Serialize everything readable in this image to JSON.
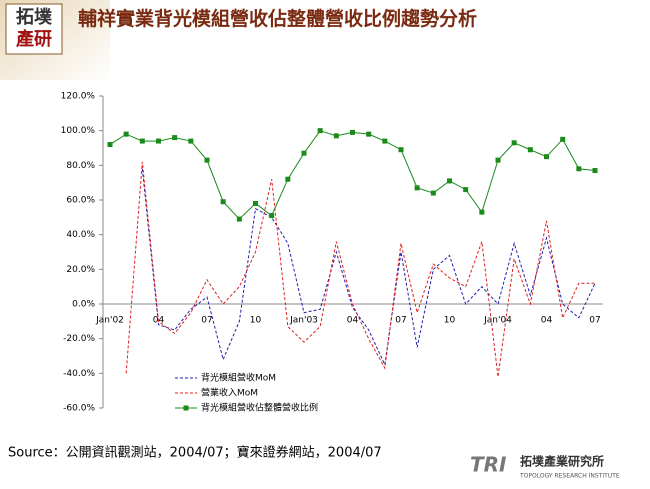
{
  "branding": {
    "logo_top": "拓墣",
    "logo_bottom": "產研",
    "footer_mark": "TRI",
    "footer_name": "拓墣產業研究所",
    "footer_sub": "TOPOLOGY RESEARCH INSTITUTE"
  },
  "chart_data": {
    "type": "line",
    "title": "輔祥實業背光模組營收佔整體營收比例趨勢分析",
    "source": "Source：公開資訊觀測站，2004/07；寶來證券網站，2004/07",
    "categories": [
      "Jan'02",
      null,
      null,
      "04",
      null,
      null,
      "07",
      null,
      null,
      "10",
      null,
      null,
      "Jan'03",
      null,
      null,
      "04",
      null,
      null,
      "07",
      null,
      null,
      "10",
      null,
      null,
      "Jan'04",
      null,
      null,
      "04",
      null,
      null,
      "07"
    ],
    "ylim": [
      -60,
      120
    ],
    "yticks": [
      {
        "value": -60,
        "label": "-60.0%"
      },
      {
        "value": -40,
        "label": "-40.0%"
      },
      {
        "value": -20,
        "label": "-20.0%"
      },
      {
        "value": 0,
        "label": "0.0%"
      },
      {
        "value": 20,
        "label": "20.0%"
      },
      {
        "value": 40,
        "label": "40.0%"
      },
      {
        "value": 60,
        "label": "60.0%"
      },
      {
        "value": 80,
        "label": "80.0%"
      },
      {
        "value": 100,
        "label": "100.0%"
      },
      {
        "value": 120,
        "label": "120.0%"
      }
    ],
    "legend": "lower left",
    "series": [
      {
        "name": "背光模組營收MoM",
        "color": "#1f1fb0",
        "style": "dashed",
        "values": [
          null,
          null,
          78,
          -12,
          -15,
          -3,
          4,
          -32,
          -10,
          55,
          50,
          35,
          -5,
          -3,
          30,
          -2,
          -15,
          -35,
          30,
          -25,
          20,
          28,
          0,
          10,
          0,
          35,
          5,
          38,
          0,
          -8,
          12
        ]
      },
      {
        "name": "營業收入MoM",
        "color": "#e02020",
        "style": "dashed",
        "values": [
          null,
          -40,
          82,
          -10,
          -17,
          -5,
          14,
          0,
          10,
          30,
          72,
          -13,
          -22,
          -13,
          36,
          0,
          -20,
          -37,
          35,
          -5,
          23,
          15,
          10,
          36,
          -42,
          26,
          0,
          48,
          -8,
          12,
          12
        ]
      },
      {
        "name": "背光模組營收佔整體營收比例",
        "color": "#1a8a1a",
        "style": "solid",
        "marker": "square",
        "values": [
          92,
          98,
          94,
          94,
          96,
          94,
          83,
          59,
          49,
          58,
          51,
          72,
          87,
          100,
          97,
          99,
          98,
          94,
          89,
          67,
          64,
          71,
          66,
          53,
          83,
          93,
          89,
          85,
          95,
          78,
          77
        ]
      }
    ]
  }
}
